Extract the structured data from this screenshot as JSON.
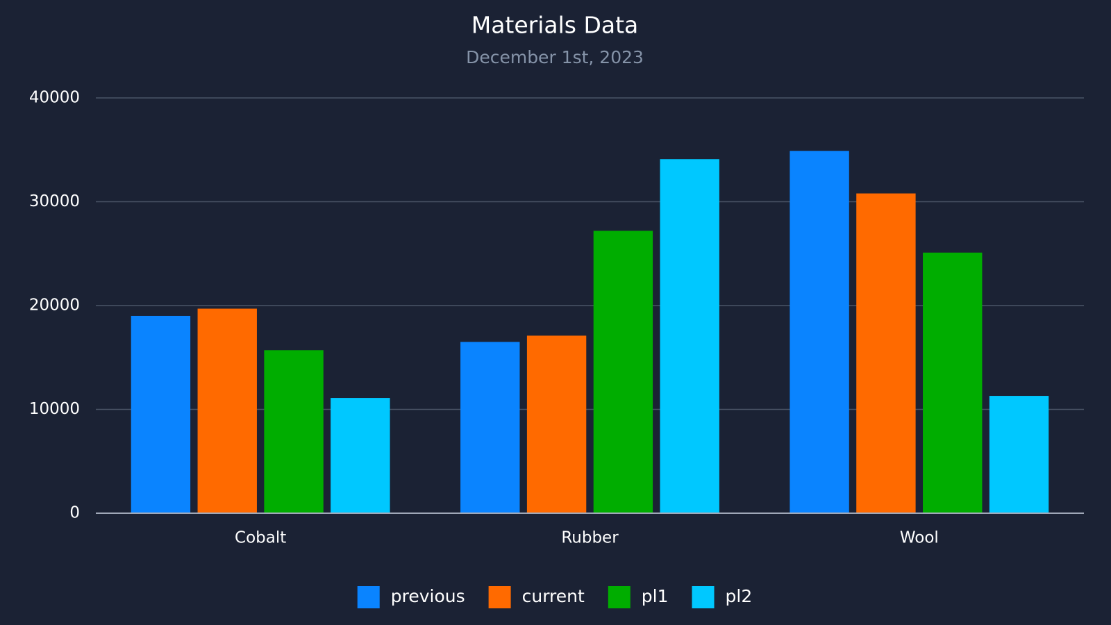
{
  "chart_data": {
    "type": "bar",
    "title": "Materials Data",
    "subtitle": "December 1st, 2023",
    "categories": [
      "Cobalt",
      "Rubber",
      "Wool"
    ],
    "series": [
      {
        "name": "previous",
        "color": "#0a84ff",
        "values": [
          19000,
          16500,
          34900
        ]
      },
      {
        "name": "current",
        "color": "#ff6a00",
        "values": [
          19700,
          17100,
          30800
        ]
      },
      {
        "name": "pl1",
        "color": "#00ad00",
        "values": [
          15700,
          27200,
          25100
        ]
      },
      {
        "name": "pl2",
        "color": "#00c8ff",
        "values": [
          11100,
          34100,
          11300
        ]
      }
    ],
    "ylim": [
      0,
      40000
    ],
    "yticks": [
      0,
      10000,
      20000,
      30000,
      40000
    ],
    "grid": true,
    "legend": "bottom"
  }
}
